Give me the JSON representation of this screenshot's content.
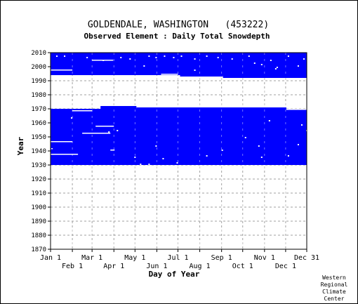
{
  "chart_data": {
    "type": "heatmap",
    "title": "GOLDENDALE, WASHINGTON   (453222)",
    "subtitle": "Observed Element : Daily Total Snowdepth",
    "xlabel": "Day of Year",
    "ylabel": "Year",
    "xlim": [
      1,
      365
    ],
    "ylim": [
      1870,
      2010
    ],
    "x_ticks": [
      {
        "label": "Jan 1",
        "doy": 1,
        "row": "upper"
      },
      {
        "label": "Feb 1",
        "doy": 32,
        "row": "lower"
      },
      {
        "label": "Mar 1",
        "doy": 60,
        "row": "upper"
      },
      {
        "label": "Apr 1",
        "doy": 91,
        "row": "lower"
      },
      {
        "label": "May 1",
        "doy": 121,
        "row": "upper"
      },
      {
        "label": "Jun 1",
        "doy": 152,
        "row": "lower"
      },
      {
        "label": "Jul 1",
        "doy": 182,
        "row": "upper"
      },
      {
        "label": "Aug 1",
        "doy": 213,
        "row": "lower"
      },
      {
        "label": "Sep 1",
        "doy": 244,
        "row": "upper"
      },
      {
        "label": "Oct 1",
        "doy": 274,
        "row": "lower"
      },
      {
        "label": "Nov 1",
        "doy": 305,
        "row": "upper"
      },
      {
        "label": "Dec 1",
        "doy": 335,
        "row": "lower"
      },
      {
        "label": "Dec 31",
        "doy": 365,
        "row": "upper"
      }
    ],
    "y_ticks": [
      1870,
      1880,
      1890,
      1900,
      1910,
      1920,
      1930,
      1940,
      1950,
      1960,
      1970,
      1980,
      1990,
      2000,
      2010
    ],
    "grid": true,
    "data_color": "#0000ff",
    "blocks": [
      {
        "x0": 1,
        "x1": 365,
        "y0": 1930,
        "y1": 1970
      },
      {
        "x0": 1,
        "x1": 365,
        "y0": 1994,
        "y1": 2010
      },
      {
        "x0": 72,
        "x1": 123,
        "y0": 1970,
        "y1": 1972
      },
      {
        "x0": 123,
        "x1": 336,
        "y0": 1970,
        "y1": 1971
      },
      {
        "x0": 185,
        "x1": 246,
        "y0": 1993,
        "y1": 1994
      },
      {
        "x0": 246,
        "x1": 365,
        "y0": 1992,
        "y1": 1994
      }
    ],
    "gaps": [
      {
        "x0": 1,
        "x1": 32,
        "y0": 1997,
        "y1": 1998
      },
      {
        "x0": 60,
        "x1": 90,
        "y0": 2004,
        "y1": 2005
      },
      {
        "x0": 32,
        "x1": 60,
        "y0": 1968,
        "y1": 1969
      },
      {
        "x0": 65,
        "x1": 91,
        "y0": 1957,
        "y1": 1958
      },
      {
        "x0": 46,
        "x1": 86,
        "y0": 1952,
        "y1": 1953
      },
      {
        "x0": 1,
        "x1": 32,
        "y0": 1946,
        "y1": 1947
      },
      {
        "x0": 1,
        "x1": 40,
        "y0": 1937,
        "y1": 1938
      },
      {
        "x0": 86,
        "x1": 92,
        "y0": 1940,
        "y1": 1941
      },
      {
        "x0": 336,
        "x1": 365,
        "y0": 1969,
        "y1": 1970
      },
      {
        "x0": 158,
        "x1": 182,
        "y0": 1994,
        "y1": 1995
      },
      {
        "x0": 2,
        "x1": 4,
        "y0": 1941,
        "y1": 1942
      }
    ],
    "specks": [
      [
        9,
        2008
      ],
      [
        20,
        2008
      ],
      [
        52,
        2007
      ],
      [
        75,
        2005
      ],
      [
        100,
        2007
      ],
      [
        113,
        2006
      ],
      [
        140,
        2008
      ],
      [
        150,
        2007
      ],
      [
        162,
        2008
      ],
      [
        175,
        2007
      ],
      [
        186,
        2008
      ],
      [
        205,
        2006
      ],
      [
        222,
        2008
      ],
      [
        238,
        2007
      ],
      [
        258,
        2006
      ],
      [
        282,
        2008
      ],
      [
        290,
        2003
      ],
      [
        300,
        2002
      ],
      [
        313,
        2005
      ],
      [
        322,
        2000
      ],
      [
        338,
        2008
      ],
      [
        352,
        2001
      ],
      [
        360,
        2006
      ],
      [
        133,
        2001
      ],
      [
        205,
        1998
      ],
      [
        320,
        1999
      ],
      [
        30,
        1964
      ],
      [
        95,
        1955
      ],
      [
        83,
        1954
      ],
      [
        120,
        1936
      ],
      [
        160,
        1935
      ],
      [
        222,
        1937
      ],
      [
        277,
        1950
      ],
      [
        296,
        1944
      ],
      [
        311,
        1962
      ],
      [
        338,
        1937
      ],
      [
        352,
        1945
      ],
      [
        357,
        1959
      ],
      [
        364,
        1955
      ],
      [
        150,
        1944
      ],
      [
        180,
        1932
      ],
      [
        244,
        1941
      ],
      [
        300,
        1936
      ],
      [
        128,
        1931
      ],
      [
        140,
        1931
      ]
    ]
  },
  "credit": {
    "lines": [
      "Western",
      "Regional",
      "Climate",
      "Center"
    ]
  }
}
